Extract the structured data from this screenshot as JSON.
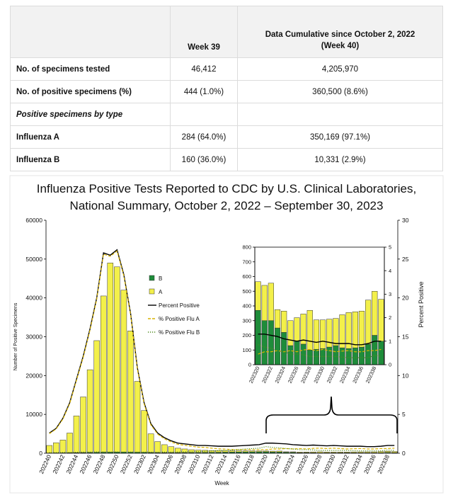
{
  "table": {
    "columns": [
      "Week 39",
      "Data Cumulative since October 2, 2022 (Week 40)"
    ],
    "rows": [
      [
        "No. of specimens tested",
        "46,412",
        "4,205,970"
      ],
      [
        "No. of positive specimens (%)",
        "444 (1.0%)",
        "360,500 (8.6%)"
      ],
      [
        "Positive specimens by type"
      ],
      [
        "Influenza A",
        "284 (64.0%)",
        "350,169 (97.1%)"
      ],
      [
        "Influenza B",
        "160 (36.0%)",
        "10,331 (2.9%)"
      ]
    ]
  },
  "chart_data": [
    {
      "type": "bar",
      "title": [
        "Influenza Positive Tests Reported to CDC by U.S. Clinical Laboratories,",
        "National Summary, October 2, 2022 – September 30, 2023"
      ],
      "xlabel": "Week",
      "ylabel": "Number of Positive Specimens",
      "y2label": "Percent Positive",
      "categories": [
        "202240",
        null,
        "202242",
        null,
        "202244",
        null,
        "202246",
        null,
        "202248",
        null,
        "202250",
        null,
        "202252",
        null,
        "202302",
        null,
        "202304",
        null,
        "202306",
        null,
        "202308",
        null,
        "202310",
        null,
        "202312",
        null,
        "202314",
        null,
        "202316",
        null,
        "202318",
        null,
        "202320",
        null,
        "202322",
        null,
        "202324",
        null,
        "202326",
        null,
        "202328",
        null,
        "202330",
        null,
        "202332",
        null,
        "202334",
        null,
        "202336",
        null,
        "202338",
        null
      ],
      "ylim": [
        0,
        60000
      ],
      "yticks": [
        0,
        10000,
        20000,
        30000,
        40000,
        50000,
        60000
      ],
      "y2lim": [
        0,
        30
      ],
      "y2ticks": [
        0,
        5,
        10,
        15,
        20,
        25,
        30
      ],
      "series": [
        {
          "name": "B",
          "kind": "bar",
          "color": "#1e8c3a",
          "values": [
            60,
            70,
            90,
            110,
            140,
            170,
            200,
            230,
            260,
            280,
            290,
            290,
            270,
            250,
            220,
            190,
            170,
            160,
            160,
            170,
            180,
            190,
            200,
            220,
            240,
            260,
            280,
            300,
            320,
            340,
            350,
            360,
            370,
            300,
            300,
            250,
            220,
            130,
            160,
            140,
            100,
            105,
            110,
            120,
            130,
            115,
            110,
            115,
            120,
            140,
            200,
            160
          ]
        },
        {
          "name": "A",
          "kind": "bar",
          "color": "#f3f04a",
          "values": [
            1940,
            2630,
            3310,
            5090,
            9460,
            14330,
            21300,
            28770,
            40240,
            48720,
            47710,
            41710,
            31230,
            18250,
            10780,
            4810,
            2830,
            2040,
            1540,
            1130,
            920,
            710,
            600,
            530,
            460,
            440,
            400,
            350,
            300,
            260,
            230,
            210,
            195,
            240,
            255,
            125,
            145,
            170,
            160,
            205,
            270,
            200,
            195,
            190,
            185,
            225,
            245,
            245,
            245,
            300,
            300,
            285
          ]
        },
        {
          "name": "Percent Positive",
          "kind": "line",
          "dash": "solid",
          "axis": "y2",
          "color": "#000000",
          "values": [
            2.6,
            3.2,
            4.5,
            6.5,
            9.5,
            12.5,
            16,
            20,
            25.8,
            25.5,
            26.2,
            23,
            18,
            11,
            6.5,
            3.8,
            2.6,
            2.0,
            1.6,
            1.3,
            1.2,
            1.1,
            1.0,
            1.0,
            0.95,
            0.9,
            0.9,
            0.9,
            0.95,
            1.0,
            1.05,
            1.1,
            1.3,
            1.3,
            1.25,
            1.2,
            1.1,
            1.05,
            1.0,
            1.05,
            1.0,
            0.95,
            1.0,
            0.95,
            0.9,
            0.9,
            0.9,
            0.85,
            0.85,
            0.9,
            1.0,
            1.0
          ]
        },
        {
          "name": "% Positive Flu A",
          "kind": "line",
          "dash": "dashed",
          "axis": "y2",
          "color": "#d9b400",
          "values": [
            2.52,
            3.12,
            4.4,
            6.38,
            9.37,
            12.35,
            15.85,
            19.84,
            25.63,
            25.35,
            26.04,
            22.85,
            17.85,
            10.86,
            6.36,
            3.66,
            2.46,
            1.85,
            1.45,
            1.14,
            1.02,
            0.9,
            0.78,
            0.75,
            0.65,
            0.57,
            0.53,
            0.48,
            0.47,
            0.45,
            0.45,
            0.45,
            0.45,
            0.55,
            0.55,
            0.6,
            0.55,
            0.6,
            0.55,
            0.63,
            0.65,
            0.6,
            0.65,
            0.6,
            0.55,
            0.58,
            0.6,
            0.55,
            0.55,
            0.6,
            0.6,
            0.65
          ]
        },
        {
          "name": "% Positive Flu B",
          "kind": "line",
          "dash": "dotted",
          "axis": "y2",
          "color": "#4f8a1e",
          "values": [
            0.08,
            0.08,
            0.1,
            0.12,
            0.13,
            0.15,
            0.15,
            0.16,
            0.17,
            0.15,
            0.16,
            0.15,
            0.15,
            0.14,
            0.14,
            0.14,
            0.14,
            0.15,
            0.15,
            0.16,
            0.18,
            0.2,
            0.22,
            0.25,
            0.3,
            0.33,
            0.37,
            0.42,
            0.48,
            0.55,
            0.6,
            0.65,
            0.85,
            0.75,
            0.7,
            0.6,
            0.55,
            0.45,
            0.45,
            0.42,
            0.35,
            0.35,
            0.35,
            0.35,
            0.35,
            0.32,
            0.3,
            0.3,
            0.3,
            0.3,
            0.4,
            0.35
          ]
        }
      ]
    },
    {
      "type": "bar",
      "categories": [
        "202320",
        null,
        "202322",
        null,
        "202324",
        null,
        "202326",
        null,
        "202328",
        null,
        "202330",
        null,
        "202332",
        null,
        "202334",
        null,
        "202336",
        null,
        "202338",
        null
      ],
      "ylim": [
        0,
        800
      ],
      "yticks": [
        0,
        100,
        200,
        300,
        400,
        500,
        600,
        700,
        800
      ],
      "y2lim": [
        0,
        5
      ],
      "y2ticks": [
        0,
        1,
        2,
        3,
        4,
        5
      ],
      "series": [
        {
          "kind": "bar",
          "color": "#1e8c3a",
          "values": [
            370,
            300,
            300,
            250,
            220,
            130,
            160,
            140,
            100,
            105,
            110,
            120,
            130,
            115,
            110,
            115,
            120,
            140,
            200,
            160
          ]
        },
        {
          "kind": "bar",
          "color": "#f3f04a",
          "values": [
            195,
            240,
            255,
            125,
            145,
            170,
            160,
            205,
            270,
            200,
            195,
            190,
            185,
            225,
            245,
            245,
            245,
            300,
            300,
            285
          ]
        },
        {
          "kind": "line",
          "dash": "solid",
          "axis": "y2",
          "color": "#000000",
          "values": [
            1.3,
            1.3,
            1.25,
            1.2,
            1.1,
            1.05,
            1.0,
            1.05,
            1.0,
            0.95,
            1.0,
            0.95,
            0.9,
            0.9,
            0.9,
            0.85,
            0.85,
            0.9,
            1.0,
            1.0
          ]
        },
        {
          "kind": "line",
          "dash": "dashed",
          "axis": "y2",
          "color": "#d9b400",
          "values": [
            0.45,
            0.55,
            0.55,
            0.6,
            0.55,
            0.6,
            0.55,
            0.63,
            0.65,
            0.6,
            0.65,
            0.6,
            0.55,
            0.58,
            0.6,
            0.55,
            0.55,
            0.6,
            0.6,
            0.65
          ]
        },
        {
          "kind": "line",
          "dash": "dotted",
          "axis": "y2",
          "color": "#4f8a1e",
          "values": [
            0.85,
            0.75,
            0.7,
            0.6,
            0.55,
            0.45,
            0.45,
            0.42,
            0.35,
            0.35,
            0.35,
            0.35,
            0.35,
            0.32,
            0.3,
            0.3,
            0.3,
            0.3,
            0.4,
            0.35
          ]
        }
      ]
    }
  ]
}
